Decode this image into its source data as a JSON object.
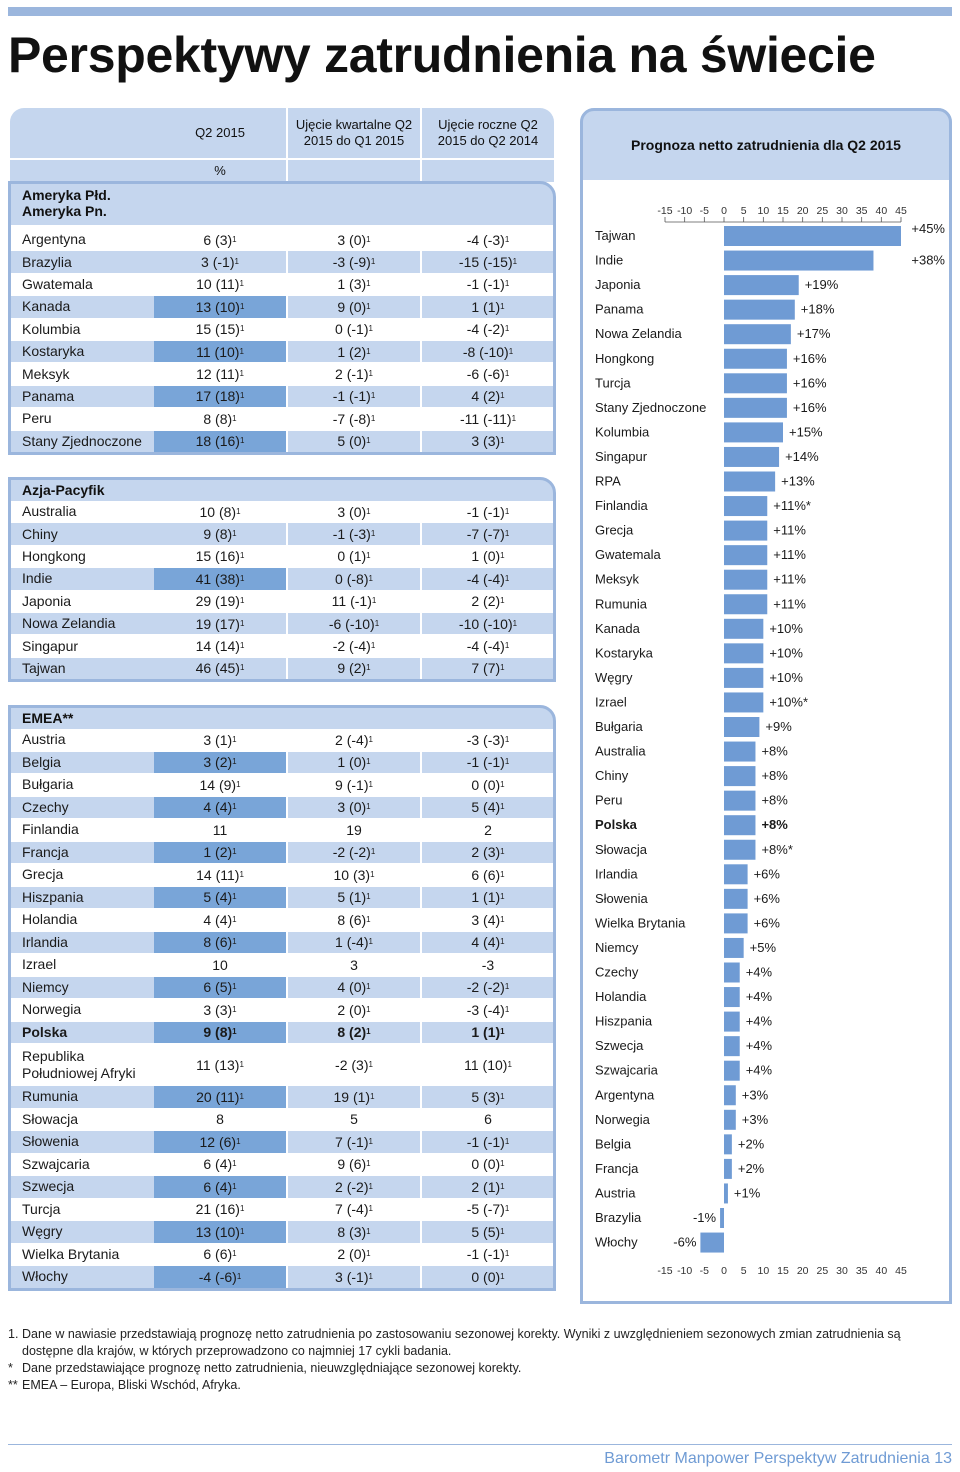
{
  "page": {
    "title": "Perspektywy zatrudnienia na świecie",
    "footer": "Barometr Manpower Perspektyw Zatrudnienia 13"
  },
  "table": {
    "headers": {
      "q2": "Q2 2015",
      "quarterly": "Ujęcie kwartalne Q2 2015 do Q1 2015",
      "yearly": "Ujęcie roczne Q2 2015 do Q2 2014",
      "unit": "%"
    },
    "sections": [
      {
        "title": "Ameryka Płd. Ameryka Pn.",
        "rows": [
          {
            "country": "Argentyna",
            "q2": "6 (3)",
            "q2s": true,
            "qq": "3 (0)",
            "qqs": true,
            "yy": "-4 (-3)",
            "yys": true,
            "hl": false
          },
          {
            "country": "Brazylia",
            "q2": "3 (-1)",
            "q2s": true,
            "qq": "-3 (-9)",
            "qqs": true,
            "yy": "-15 (-15)",
            "yys": true,
            "hl": false
          },
          {
            "country": "Gwatemala",
            "q2": "10 (11)",
            "q2s": true,
            "qq": "1 (3)",
            "qqs": true,
            "yy": "-1 (-1)",
            "yys": true,
            "hl": false
          },
          {
            "country": "Kanada",
            "q2": "13 (10)",
            "q2s": true,
            "qq": "9 (0)",
            "qqs": true,
            "yy": "1 (1)",
            "yys": true,
            "hl": true
          },
          {
            "country": "Kolumbia",
            "q2": "15 (15)",
            "q2s": true,
            "qq": "0 (-1)",
            "qqs": true,
            "yy": "-4 (-2)",
            "yys": true,
            "hl": false
          },
          {
            "country": "Kostaryka",
            "q2": "11 (10)",
            "q2s": true,
            "qq": "1 (2)",
            "qqs": true,
            "yy": "-8 (-10)",
            "yys": true,
            "hl": true
          },
          {
            "country": "Meksyk",
            "q2": "12 (11)",
            "q2s": true,
            "qq": "2 (-1)",
            "qqs": true,
            "yy": "-6 (-6)",
            "yys": true,
            "hl": false
          },
          {
            "country": "Panama",
            "q2": "17 (18)",
            "q2s": true,
            "qq": "-1 (-1)",
            "qqs": true,
            "yy": "4 (2)",
            "yys": true,
            "hl": true
          },
          {
            "country": "Peru",
            "q2": "8 (8)",
            "q2s": true,
            "qq": "-7 (-8)",
            "qqs": true,
            "yy": "-11 (-11)",
            "yys": true,
            "hl": false
          },
          {
            "country": "Stany Zjednoczone",
            "q2": "18 (16)",
            "q2s": true,
            "qq": "5 (0)",
            "qqs": true,
            "yy": "3 (3)",
            "yys": true,
            "hl": true
          }
        ]
      },
      {
        "title": "Azja-Pacyfik",
        "rows": [
          {
            "country": "Australia",
            "q2": "10 (8)",
            "q2s": true,
            "qq": "3 (0)",
            "qqs": true,
            "yy": "-1 (-1)",
            "yys": true,
            "hl": false
          },
          {
            "country": "Chiny",
            "q2": "9 (8)",
            "q2s": true,
            "qq": "-1 (-3)",
            "qqs": true,
            "yy": "-7 (-7)",
            "yys": true,
            "hl": false
          },
          {
            "country": "Hongkong",
            "q2": "15 (16)",
            "q2s": true,
            "qq": "0 (1)",
            "qqs": true,
            "yy": "1 (0)",
            "yys": true,
            "hl": false
          },
          {
            "country": "Indie",
            "q2": "41 (38)",
            "q2s": true,
            "qq": "0 (-8)",
            "qqs": true,
            "yy": "-4 (-4)",
            "yys": true,
            "hl": true
          },
          {
            "country": "Japonia",
            "q2": "29 (19)",
            "q2s": true,
            "qq": "11 (-1)",
            "qqs": true,
            "yy": "2 (2)",
            "yys": true,
            "hl": false
          },
          {
            "country": "Nowa Zelandia",
            "q2": "19 (17)",
            "q2s": true,
            "qq": "-6 (-10)",
            "qqs": true,
            "yy": "-10 (-10)",
            "yys": true,
            "hl": false
          },
          {
            "country": "Singapur",
            "q2": "14 (14)",
            "q2s": true,
            "qq": "-2 (-4)",
            "qqs": true,
            "yy": "-4 (-4)",
            "yys": true,
            "hl": false
          },
          {
            "country": "Tajwan",
            "q2": "46 (45)",
            "q2s": true,
            "qq": "9 (2)",
            "qqs": true,
            "yy": "7 (7)",
            "yys": true,
            "hl": false
          }
        ]
      },
      {
        "title": "EMEA**",
        "rows": [
          {
            "country": "Austria",
            "q2": "3 (1)",
            "q2s": true,
            "qq": "2 (-4)",
            "qqs": true,
            "yy": "-3 (-3)",
            "yys": true,
            "hl": false
          },
          {
            "country": "Belgia",
            "q2": "3 (2)",
            "q2s": true,
            "qq": "1 (0)",
            "qqs": true,
            "yy": "-1 (-1)",
            "yys": true,
            "hl": true
          },
          {
            "country": "Bułgaria",
            "q2": "14 (9)",
            "q2s": true,
            "qq": "9 (-1)",
            "qqs": true,
            "yy": "0 (0)",
            "yys": true,
            "hl": false
          },
          {
            "country": "Czechy",
            "q2": "4 (4)",
            "q2s": true,
            "qq": "3 (0)",
            "qqs": true,
            "yy": "5 (4)",
            "yys": true,
            "hl": true
          },
          {
            "country": "Finlandia",
            "q2": "11",
            "q2s": false,
            "qq": "19",
            "qqs": false,
            "yy": "2",
            "yys": false,
            "hl": false
          },
          {
            "country": "Francja",
            "q2": "1 (2)",
            "q2s": true,
            "qq": "-2 (-2)",
            "qqs": true,
            "yy": "2 (3)",
            "yys": true,
            "hl": true
          },
          {
            "country": "Grecja",
            "q2": "14 (11)",
            "q2s": true,
            "qq": "10 (3)",
            "qqs": true,
            "yy": "6 (6)",
            "yys": true,
            "hl": false
          },
          {
            "country": "Hiszpania",
            "q2": "5 (4)",
            "q2s": true,
            "qq": "5 (1)",
            "qqs": true,
            "yy": "1 (1)",
            "yys": true,
            "hl": true
          },
          {
            "country": "Holandia",
            "q2": "4 (4)",
            "q2s": true,
            "qq": "8 (6)",
            "qqs": true,
            "yy": "3 (4)",
            "yys": true,
            "hl": false
          },
          {
            "country": "Irlandia",
            "q2": "8 (6)",
            "q2s": true,
            "qq": "1 (-4)",
            "qqs": true,
            "yy": "4 (4)",
            "yys": true,
            "hl": true
          },
          {
            "country": "Izrael",
            "q2": "10",
            "q2s": false,
            "qq": "3",
            "qqs": false,
            "yy": "-3",
            "yys": false,
            "hl": false
          },
          {
            "country": "Niemcy",
            "q2": "6 (5)",
            "q2s": true,
            "qq": "4 (0)",
            "qqs": true,
            "yy": "-2 (-2)",
            "yys": true,
            "hl": true
          },
          {
            "country": "Norwegia",
            "q2": "3 (3)",
            "q2s": true,
            "qq": "2 (0)",
            "qqs": true,
            "yy": "-3 (-4)",
            "yys": true,
            "hl": false
          },
          {
            "country": "Polska",
            "q2": "9 (8)",
            "q2s": true,
            "qq": "8 (2)",
            "qqs": true,
            "yy": "1 (1)",
            "yys": true,
            "hl": true,
            "bold": true
          },
          {
            "country": "Republika Południowej Afryki",
            "q2": "11 (13)",
            "q2s": true,
            "qq": "-2 (3)",
            "qqs": true,
            "yy": "11 (10)",
            "yys": true,
            "hl": false,
            "tall": true
          },
          {
            "country": "Rumunia",
            "q2": "20 (11)",
            "q2s": true,
            "qq": "19 (1)",
            "qqs": true,
            "yy": "5 (3)",
            "yys": true,
            "hl": true
          },
          {
            "country": "Słowacja",
            "q2": "8",
            "q2s": false,
            "qq": "5",
            "qqs": false,
            "yy": "6",
            "yys": false,
            "hl": false
          },
          {
            "country": "Słowenia",
            "q2": "12 (6)",
            "q2s": true,
            "qq": "7 (-1)",
            "qqs": true,
            "yy": "-1 (-1)",
            "yys": true,
            "hl": true
          },
          {
            "country": "Szwajcaria",
            "q2": "6 (4)",
            "q2s": true,
            "qq": "9 (6)",
            "qqs": true,
            "yy": "0 (0)",
            "yys": true,
            "hl": false
          },
          {
            "country": "Szwecja",
            "q2": "6 (4)",
            "q2s": true,
            "qq": "2 (-2)",
            "qqs": true,
            "yy": "2 (1)",
            "yys": true,
            "hl": true
          },
          {
            "country": "Turcja",
            "q2": "21 (16)",
            "q2s": true,
            "qq": "7 (-4)",
            "qqs": true,
            "yy": "-5 (-7)",
            "yys": true,
            "hl": false
          },
          {
            "country": "Węgry",
            "q2": "13 (10)",
            "q2s": true,
            "qq": "8 (3)",
            "qqs": true,
            "yy": "5 (5)",
            "yys": true,
            "hl": true
          },
          {
            "country": "Wielka Brytania",
            "q2": "6 (6)",
            "q2s": true,
            "qq": "2 (0)",
            "qqs": true,
            "yy": "-1 (-1)",
            "yys": true,
            "hl": false
          },
          {
            "country": "Włochy",
            "q2": "-4 (-6)",
            "q2s": true,
            "qq": "3 (-1)",
            "qqs": true,
            "yy": "0 (0)",
            "yys": true,
            "hl": true
          }
        ]
      }
    ]
  },
  "chart_data": {
    "type": "bar",
    "orientation": "horizontal",
    "title": "Prognoza netto zatrudnienia dla Q2 2015",
    "xlim": [
      -15,
      45
    ],
    "xticks": [
      -15,
      -10,
      -5,
      0,
      5,
      10,
      15,
      20,
      25,
      30,
      35,
      40,
      45
    ],
    "color": "#6f9bd4",
    "categories": [
      "Tajwan",
      "Indie",
      "Japonia",
      "Panama",
      "Nowa Zelandia",
      "Hongkong",
      "Turcja",
      "Stany Zjednoczone",
      "Kolumbia",
      "Singapur",
      "RPA",
      "Finlandia",
      "Grecja",
      "Gwatemala",
      "Meksyk",
      "Rumunia",
      "Kanada",
      "Kostaryka",
      "Węgry",
      "Izrael",
      "Bułgaria",
      "Australia",
      "Chiny",
      "Peru",
      "Polska",
      "Słowacja",
      "Irlandia",
      "Słowenia",
      "Wielka Brytania",
      "Niemcy",
      "Czechy",
      "Holandia",
      "Hiszpania",
      "Szwecja",
      "Szwajcaria",
      "Argentyna",
      "Norwegia",
      "Belgia",
      "Francja",
      "Austria",
      "Brazylia",
      "Włochy"
    ],
    "values": [
      45,
      38,
      19,
      18,
      17,
      16,
      16,
      16,
      15,
      14,
      13,
      11,
      11,
      11,
      11,
      11,
      10,
      10,
      10,
      10,
      9,
      8,
      8,
      8,
      8,
      8,
      6,
      6,
      6,
      5,
      4,
      4,
      4,
      4,
      4,
      3,
      3,
      2,
      2,
      1,
      -1,
      -6
    ],
    "labels": [
      "+45%",
      "+38%",
      "+19%",
      "+18%",
      "+17%",
      "+16%",
      "+16%",
      "+16%",
      "+15%",
      "+14%",
      "+13%",
      "+11%*",
      "+11%",
      "+11%",
      "+11%",
      "+11%",
      "+10%",
      "+10%",
      "+10%",
      "+10%*",
      "+9%",
      "+8%",
      "+8%",
      "+8%",
      "+8%",
      "+8%*",
      "+6%",
      "+6%",
      "+6%",
      "+5%",
      "+4%",
      "+4%",
      "+4%",
      "+4%",
      "+4%",
      "+3%",
      "+3%",
      "+2%",
      "+2%",
      "+1%",
      "-1%",
      "-6%"
    ],
    "bold": [
      "Polska"
    ]
  },
  "footnotes": [
    {
      "mark": "1.",
      "text": "Dane w nawiasie przedstawiają prognozę netto zatrudnienia po zastosowaniu sezonowej korekty. Wyniki z uwzględnieniem sezonowych zmian zatrudnienia są dostępne dla krajów, w których przeprowadzono co najmniej 17 cykli badania."
    },
    {
      "mark": "*",
      "text": "Dane przedstawiające prognozę netto zatrudnienia, nieuwzględniające sezonowej korekty."
    },
    {
      "mark": "**",
      "text": "EMEA – Europa, Bliski Wschód, Afryka."
    }
  ]
}
